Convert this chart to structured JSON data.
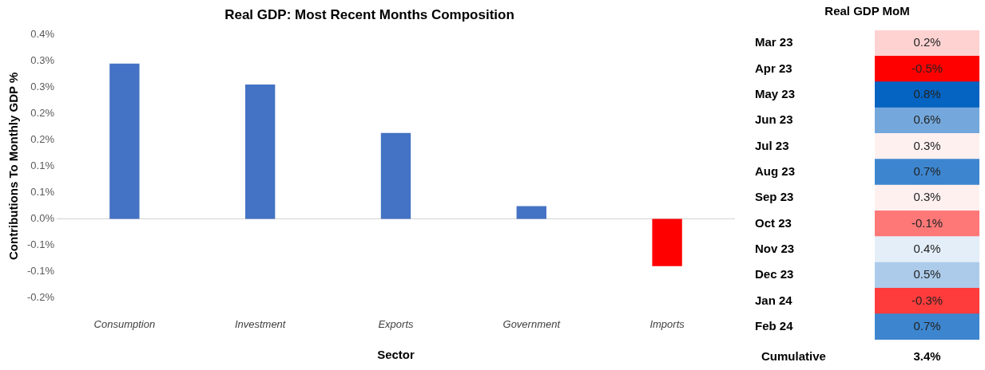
{
  "chart_data": [
    {
      "type": "bar",
      "title": "Real GDP: Most Recent Months Composition",
      "xlabel": "Sector",
      "ylabel": "Contributions To Monthly GDP %",
      "categories": [
        "Consumption",
        "Investment",
        "Exports",
        "Government",
        "Imports"
      ],
      "values": [
        0.295,
        0.255,
        0.163,
        0.024,
        -0.09
      ],
      "colors": [
        "#4472c4",
        "#4472c4",
        "#4472c4",
        "#4472c4",
        "#ff0000"
      ],
      "ylim": [
        -0.15,
        0.35
      ],
      "yticks": [
        {
          "value": -0.15,
          "label": "-0.2%"
        },
        {
          "value": -0.1,
          "label": "-0.1%"
        },
        {
          "value": -0.05,
          "label": "-0.1%"
        },
        {
          "value": 0,
          "label": "0.0%"
        },
        {
          "value": 0.05,
          "label": "0.1%"
        },
        {
          "value": 0.1,
          "label": "0.1%"
        },
        {
          "value": 0.15,
          "label": "0.2%"
        },
        {
          "value": 0.2,
          "label": "0.2%"
        },
        {
          "value": 0.25,
          "label": "0.3%"
        },
        {
          "value": 0.3,
          "label": "0.3%"
        },
        {
          "value": 0.35,
          "label": "0.4%"
        }
      ],
      "ref_lines": [
        {
          "axis": "y",
          "value": 0,
          "color": "#d0d0d0"
        }
      ],
      "grid": false,
      "legend": false
    },
    {
      "type": "heatmap",
      "title": "Real GDP MoM",
      "categories": [
        null
      ],
      "y_categories": [
        "Mar 23",
        "Apr 23",
        "May 23",
        "Jun 23",
        "Jul 23",
        "Aug 23",
        "Sep 23",
        "Oct 23",
        "Nov 23",
        "Dec 23",
        "Jan 24",
        "Feb 24"
      ],
      "cells": [
        [
          0.2
        ],
        [
          -0.5
        ],
        [
          0.8
        ],
        [
          0.6
        ],
        [
          0.3
        ],
        [
          0.7
        ],
        [
          0.3
        ],
        [
          -0.1
        ],
        [
          0.4
        ],
        [
          0.5
        ],
        [
          -0.3
        ],
        [
          0.7
        ]
      ],
      "cell_labels": [
        [
          "0.2%"
        ],
        [
          "-0.5%"
        ],
        [
          "0.8%"
        ],
        [
          "0.6%"
        ],
        [
          "0.3%"
        ],
        [
          "0.7%"
        ],
        [
          "0.3%"
        ],
        [
          "-0.1%"
        ],
        [
          "0.4%"
        ],
        [
          "0.5%"
        ],
        [
          "-0.3%"
        ],
        [
          "0.7%"
        ]
      ],
      "annotations": [
        "Cumulative",
        "3.4%"
      ],
      "legend": false
    }
  ]
}
